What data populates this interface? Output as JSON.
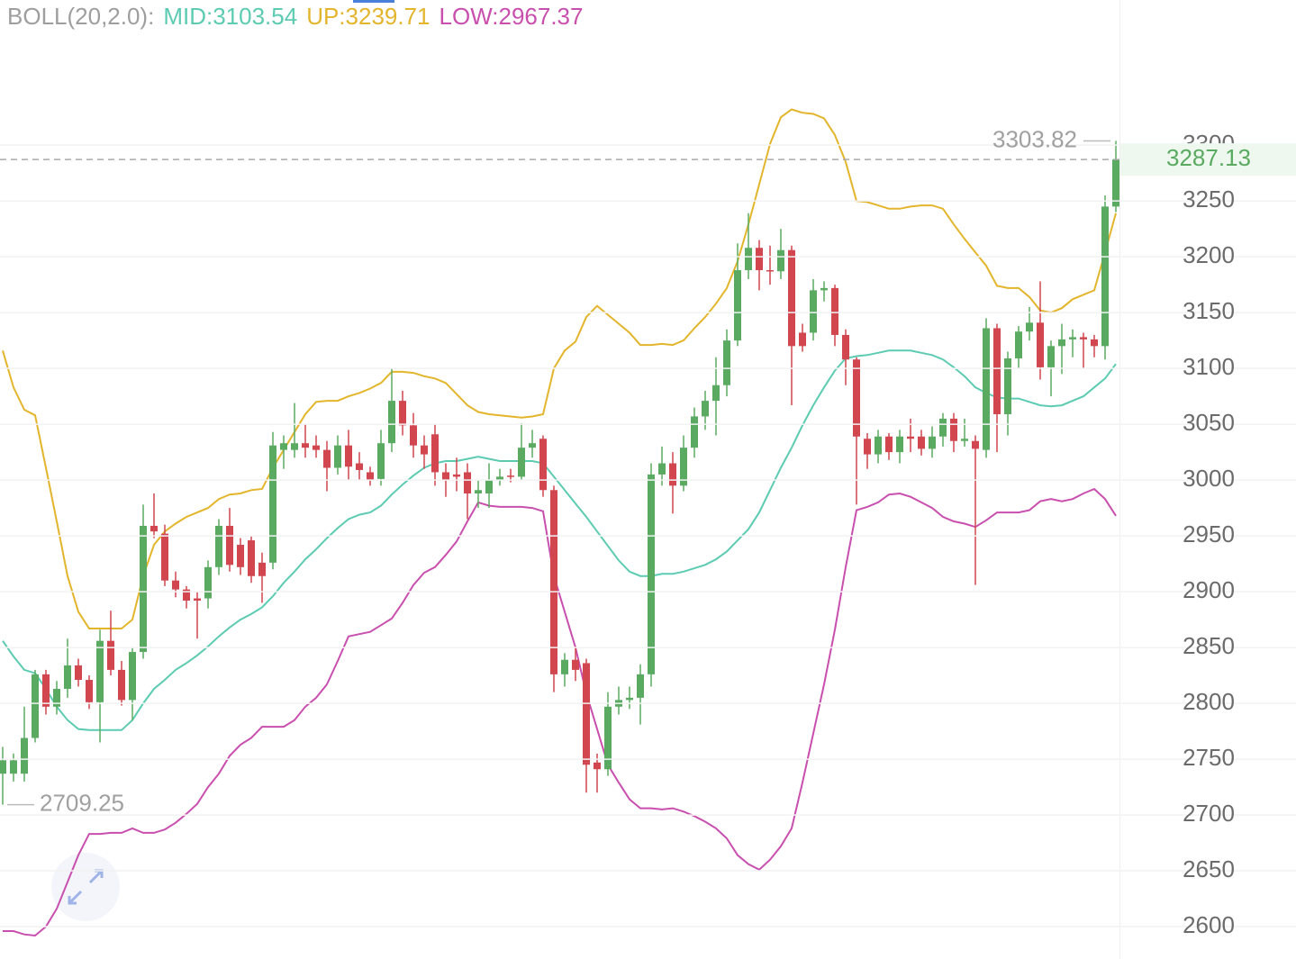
{
  "chart_data": {
    "type": "candlestick",
    "title": "BOLL(20,2.0):",
    "title_color": "#9e9e9e",
    "up_color": "#5aab61",
    "down_color": "#d1464f",
    "ylim": [
      2571,
      3430
    ],
    "yticks": [
      2600,
      2650,
      2700,
      2750,
      2800,
      2850,
      2900,
      2950,
      3000,
      3050,
      3100,
      3150,
      3200,
      3250,
      3300
    ],
    "grid": true,
    "open": [
      2737,
      2737,
      2737,
      2769,
      2826,
      2797,
      2813,
      2834,
      2821,
      2801,
      2856,
      2830,
      2803,
      2846,
      2959,
      2952,
      2910,
      2902,
      2894,
      2894,
      2922,
      2959,
      2942,
      2946,
      2926,
      2926,
      3027,
      3027,
      3033,
      3031,
      3027,
      3011,
      3031,
      3015,
      3007,
      3001,
      3033,
      3071,
      3049,
      3031,
      3041,
      3007,
      3005,
      3007,
      2988,
      2988,
      3000,
      3004,
      3003,
      3029,
      3037,
      2991,
      2826,
      2839,
      2836,
      2747,
      2741,
      2797,
      2803,
      2805,
      2826,
      3005,
      3015,
      2995,
      3029,
      3057,
      3071,
      3085,
      3125,
      3188,
      3208,
      3188,
      3187,
      3206,
      3132,
      3132,
      3170,
      3172,
      3130,
      3108,
      3037,
      3023,
      3039,
      3025,
      3039,
      3039,
      3028,
      3039,
      3055,
      3035,
      3035,
      3027,
      3136,
      3059,
      3109,
      3133,
      3141,
      3101,
      3120,
      3126,
      3128,
      3126,
      3120,
      3245
    ],
    "high": [
      2761,
      2755,
      2797,
      2830,
      2830,
      2820,
      2858,
      2840,
      2825,
      2866,
      2883,
      2838,
      2850,
      2978,
      2988,
      2960,
      2918,
      2905,
      2900,
      2928,
      2965,
      2975,
      2948,
      2950,
      2935,
      3043,
      3040,
      3069,
      3050,
      3040,
      3035,
      3040,
      3045,
      3025,
      3012,
      3045,
      3100,
      3080,
      3060,
      3040,
      3050,
      3015,
      3020,
      3015,
      3000,
      3015,
      3010,
      3010,
      3051,
      3045,
      3040,
      2995,
      2845,
      2851,
      2840,
      2755,
      2810,
      2815,
      2815,
      2835,
      3015,
      3030,
      3025,
      3040,
      3065,
      3080,
      3110,
      3135,
      3212,
      3239,
      3215,
      3210,
      3225,
      3210,
      3140,
      3180,
      3178,
      3175,
      3135,
      3110,
      3042,
      3045,
      3042,
      3045,
      3055,
      3045,
      3048,
      3060,
      3060,
      3055,
      3040,
      3145,
      3140,
      3115,
      3138,
      3155,
      3178,
      3125,
      3140,
      3135,
      3132,
      3130,
      3255,
      3303.82
    ],
    "low": [
      2709.25,
      2730,
      2730,
      2765,
      2790,
      2790,
      2805,
      2815,
      2795,
      2765,
      2825,
      2798,
      2785,
      2840,
      2948,
      2905,
      2895,
      2885,
      2858,
      2885,
      2915,
      2918,
      2915,
      2908,
      2890,
      2920,
      3010,
      3020,
      3020,
      3020,
      2990,
      3005,
      3000,
      3000,
      2995,
      2995,
      3025,
      3040,
      3020,
      3010,
      2995,
      2985,
      2990,
      2965,
      2975,
      2975,
      2995,
      2998,
      3000,
      3020,
      2985,
      2810,
      2815,
      2820,
      2720,
      2720,
      2735,
      2790,
      2795,
      2781,
      2815,
      2995,
      2970,
      2990,
      3020,
      3045,
      3040,
      3075,
      3120,
      3180,
      3170,
      3175,
      3180,
      3067,
      3115,
      3125,
      3160,
      3120,
      3085,
      2978,
      3010,
      3015,
      3018,
      3015,
      3025,
      3022,
      3020,
      3030,
      3025,
      3030,
      2906,
      3020,
      3025,
      3040,
      3100,
      3125,
      3090,
      3075,
      3095,
      3110,
      3100,
      3110,
      3108,
      3240
    ],
    "close": [
      2749,
      2749,
      2769,
      2826,
      2797,
      2813,
      2834,
      2821,
      2801,
      2856,
      2830,
      2803,
      2846,
      2959,
      2954,
      2910,
      2902,
      2892,
      2892,
      2922,
      2959,
      2924,
      2922,
      2914,
      2914,
      3031,
      3033,
      3033,
      3029,
      3027,
      3011,
      3031,
      3012,
      3009,
      3000,
      3033,
      3071,
      3049,
      3031,
      3023,
      3007,
      3000,
      3003,
      2988,
      2991,
      3000,
      3003,
      3003,
      3029,
      3033,
      2991,
      2826,
      2839,
      2830,
      2745,
      2741,
      2797,
      2803,
      2805,
      2826,
      3005,
      3015,
      2995,
      3029,
      3057,
      3071,
      3085,
      3125,
      3188,
      3208,
      3188,
      3187,
      3206,
      3120,
      3120,
      3170,
      3172,
      3130,
      3108,
      3039,
      3023,
      3039,
      3025,
      3039,
      3037,
      3028,
      3039,
      3055,
      3035,
      3037,
      3028,
      3136,
      3059,
      3109,
      3133,
      3141,
      3101,
      3120,
      3126,
      3128,
      3126,
      3120,
      3245,
      3287.13
    ],
    "series": [
      {
        "label": "MID:3103.54",
        "color": "#5ccbb2",
        "values": [
          2856,
          2842,
          2830,
          2827,
          2813,
          2797,
          2785,
          2777,
          2776,
          2776,
          2776,
          2776,
          2785,
          2800,
          2813,
          2821,
          2830,
          2836,
          2843,
          2851,
          2860,
          2868,
          2875,
          2880,
          2886,
          2896,
          2908,
          2918,
          2929,
          2938,
          2948,
          2957,
          2965,
          2969,
          2971,
          2977,
          2987,
          2996,
          3004,
          3011,
          3015,
          3017,
          3017,
          3019,
          3021,
          3019,
          3017,
          3017,
          3017,
          3017,
          3015,
          3003,
          2991,
          2979,
          2967,
          2954,
          2941,
          2928,
          2918,
          2914,
          2914,
          2916,
          2916,
          2918,
          2921,
          2924,
          2929,
          2936,
          2946,
          2956,
          2971,
          2991,
          3011,
          3029,
          3049,
          3067,
          3083,
          3098,
          3109,
          3111,
          3112,
          3114,
          3116,
          3116,
          3116,
          3114,
          3112,
          3108,
          3101,
          3093,
          3083,
          3078,
          3074,
          3073,
          3073,
          3070,
          3067,
          3066,
          3067,
          3071,
          3075,
          3083,
          3091,
          3104
        ]
      },
      {
        "label": "UP:3239.71",
        "color": "#e3b52c",
        "values": [
          3116,
          3083,
          3063,
          3058,
          3011,
          2963,
          2914,
          2882,
          2867,
          2867,
          2867,
          2867,
          2875,
          2914,
          2942,
          2954,
          2961,
          2967,
          2971,
          2975,
          2983,
          2987,
          2988,
          2991,
          2992,
          3011,
          3027,
          3043,
          3059,
          3070,
          3071,
          3071,
          3075,
          3078,
          3082,
          3087,
          3097,
          3097,
          3096,
          3093,
          3091,
          3087,
          3077,
          3067,
          3061,
          3059,
          3058,
          3057,
          3056,
          3057,
          3059,
          3100,
          3116,
          3124,
          3146,
          3156,
          3148,
          3140,
          3132,
          3121,
          3121,
          3122,
          3121,
          3125,
          3136,
          3146,
          3158,
          3172,
          3196,
          3229,
          3265,
          3301,
          3325,
          3332,
          3329,
          3328,
          3324,
          3309,
          3285,
          3250,
          3249,
          3246,
          3243,
          3243,
          3245,
          3246,
          3246,
          3243,
          3229,
          3216,
          3204,
          3192,
          3174,
          3172,
          3172,
          3164,
          3152,
          3150,
          3154,
          3162,
          3166,
          3170,
          3204,
          3239
        ]
      },
      {
        "label": "LOW:2967.37",
        "color": "#c94fae",
        "values": [
          2596,
          2596,
          2593,
          2592,
          2600,
          2616,
          2640,
          2664,
          2683,
          2683,
          2684,
          2684,
          2688,
          2684,
          2684,
          2687,
          2693,
          2701,
          2710,
          2725,
          2737,
          2753,
          2763,
          2769,
          2779,
          2779,
          2779,
          2785,
          2797,
          2805,
          2817,
          2838,
          2860,
          2862,
          2864,
          2870,
          2876,
          2890,
          2906,
          2917,
          2922,
          2933,
          2945,
          2963,
          2980,
          2977,
          2976,
          2976,
          2976,
          2975,
          2972,
          2914,
          2882,
          2850,
          2809,
          2777,
          2745,
          2729,
          2714,
          2706,
          2706,
          2705,
          2706,
          2703,
          2699,
          2694,
          2688,
          2679,
          2664,
          2656,
          2651,
          2660,
          2672,
          2688,
          2729,
          2773,
          2817,
          2866,
          2922,
          2973,
          2976,
          2980,
          2987,
          2988,
          2985,
          2980,
          2975,
          2967,
          2963,
          2961,
          2958,
          2964,
          2971,
          2971,
          2971,
          2973,
          2981,
          2983,
          2981,
          2983,
          2988,
          2992,
          2983,
          2968
        ]
      }
    ]
  }
}
